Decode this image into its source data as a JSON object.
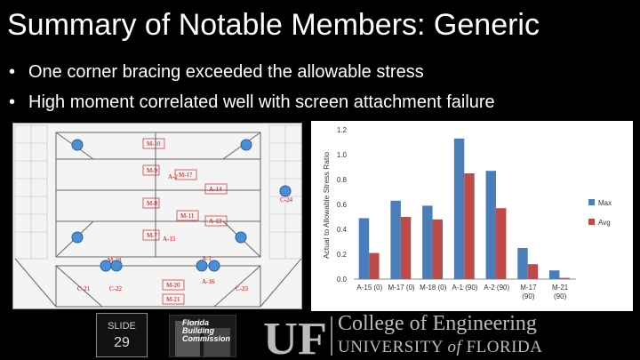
{
  "slide": {
    "title": "Summary of Notable Members: Generic",
    "bullets": [
      "One corner bracing exceeded the allowable stress",
      "High moment correlated well with screen attachment failure"
    ],
    "bullet_glyph": "•",
    "slide_label": "SLIDE",
    "slide_number": "29"
  },
  "drawing": {
    "member_labels": [
      "M-10",
      "M-9",
      "M-17",
      "A-14",
      "M-8",
      "M-11",
      "A-13",
      "M-7",
      "A-15",
      "M-20",
      "M-21",
      "A-16",
      "M-18",
      "A-1",
      "A-2",
      "C-21",
      "C-22",
      "C-23",
      "C-24"
    ]
  },
  "footer": {
    "fbc_logo_text": [
      "Florida",
      "Building",
      "Commission"
    ],
    "uf_text": "UF",
    "college": "College of Engineering",
    "university_prefix": "UNIVERSITY ",
    "university_of": "of",
    "university_suffix": " FLORIDA"
  },
  "chart_data": {
    "type": "bar",
    "categories": [
      "A-15 (0)",
      "M-17 (0)",
      "M-18 (0)",
      "A-1 (90)",
      "A-2 (90)",
      "M-17 (90)",
      "M-21 (90)"
    ],
    "category_lines": [
      [
        "A-15 (0)"
      ],
      [
        "M-17 (0)"
      ],
      [
        "M-18 (0)"
      ],
      [
        "A-1 (90)"
      ],
      [
        "A-2 (90)"
      ],
      [
        "M-17",
        "(90)"
      ],
      [
        "M-21",
        "(90)"
      ]
    ],
    "series": [
      {
        "name": "Max",
        "values": [
          0.49,
          0.63,
          0.59,
          1.13,
          0.87,
          0.25,
          0.07
        ],
        "color": "#4a7ebb"
      },
      {
        "name": "Avg",
        "values": [
          0.21,
          0.5,
          0.48,
          0.85,
          0.57,
          0.12,
          0.01
        ],
        "color": "#be4b48"
      }
    ],
    "ylabel": "Actual to Allowable Stress Ratio",
    "ylim": [
      0,
      1.2
    ],
    "yticks": [
      "0.0",
      "0.2",
      "0.4",
      "0.6",
      "0.8",
      "1.0",
      "1.2"
    ],
    "legend": "right",
    "grid": false
  }
}
